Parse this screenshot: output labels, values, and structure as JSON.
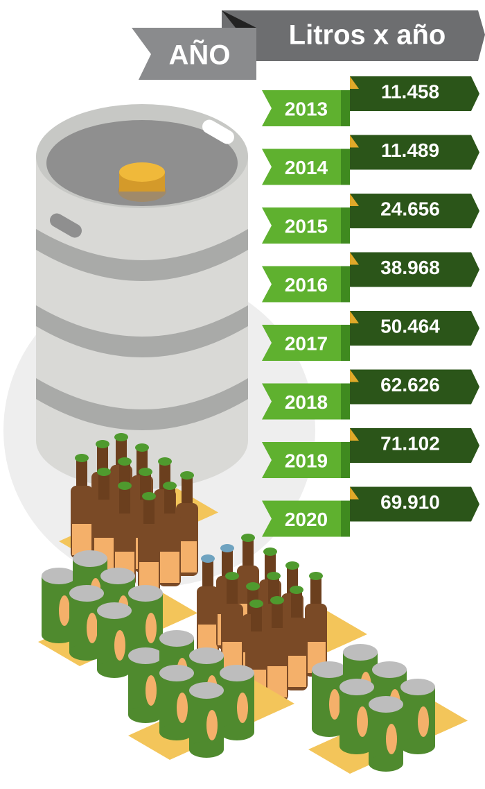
{
  "header": {
    "value_title": "Litros x año",
    "year_title": "AÑO"
  },
  "rows": [
    {
      "year": "2013",
      "value": "11.458"
    },
    {
      "year": "2014",
      "value": "11.489"
    },
    {
      "year": "2015",
      "value": "24.656"
    },
    {
      "year": "2016",
      "value": "38.968"
    },
    {
      "year": "2017",
      "value": "50.464"
    },
    {
      "year": "2018",
      "value": "62.626"
    },
    {
      "year": "2019",
      "value": "71.102"
    },
    {
      "year": "2020",
      "value": "69.910"
    }
  ]
}
